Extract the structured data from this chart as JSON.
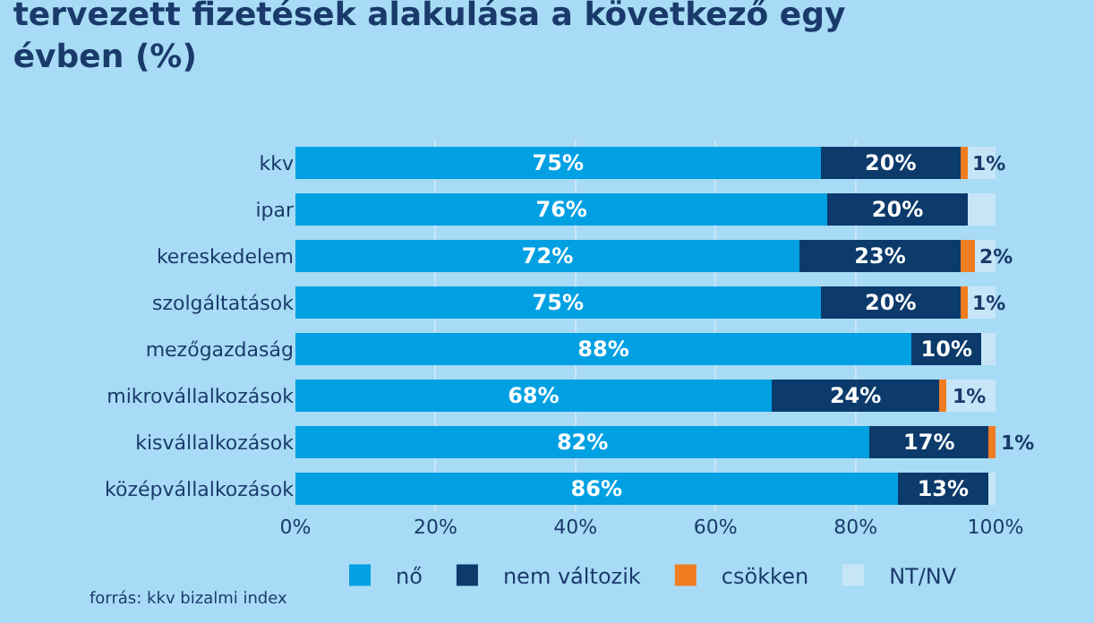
{
  "chart_data": {
    "type": "bar",
    "orientation": "horizontal",
    "stacked": true,
    "title": "tervezett fizetések alakulása a következő egy\névben (%)",
    "categories": [
      "kkv",
      "ipar",
      "kereskedelem",
      "szolgáltatások",
      "mezőgazdaság",
      "mikrovállalkozások",
      "kisvállalkozások",
      "középvállalkozások"
    ],
    "series": [
      {
        "name": "nő",
        "color": "#00a0e3",
        "values": [
          75,
          76,
          72,
          75,
          88,
          68,
          82,
          86
        ],
        "value_labels": [
          "75%",
          "76%",
          "72%",
          "75%",
          "88%",
          "68%",
          "82%",
          "86%"
        ]
      },
      {
        "name": "nem változik",
        "color": "#0b3a6b",
        "values": [
          20,
          20,
          23,
          20,
          10,
          24,
          17,
          13
        ],
        "value_labels": [
          "20%",
          "20%",
          "23%",
          "20%",
          "10%",
          "24%",
          "17%",
          "13%"
        ]
      },
      {
        "name": "csökken",
        "color": "#f07d22",
        "values": [
          1,
          0,
          2,
          1,
          0,
          1,
          1,
          0
        ],
        "value_labels": [
          "1%",
          null,
          "2%",
          "1%",
          null,
          "1%",
          "1%",
          null
        ]
      },
      {
        "name": "NT/NV",
        "color": "#c6e6f8",
        "values": [
          4,
          4,
          3,
          4,
          2,
          7,
          0,
          1
        ]
      }
    ],
    "xlim": [
      0,
      100
    ],
    "xticks": [
      {
        "value": 0,
        "label": "0%"
      },
      {
        "value": 20,
        "label": "20%"
      },
      {
        "value": 40,
        "label": "40%"
      },
      {
        "value": 60,
        "label": "60%"
      },
      {
        "value": 80,
        "label": "80%"
      },
      {
        "value": 100,
        "label": "100%"
      }
    ],
    "grid": "x",
    "legend": "bottom",
    "annotations": [
      "forrás: kkv bizalmi index"
    ]
  }
}
